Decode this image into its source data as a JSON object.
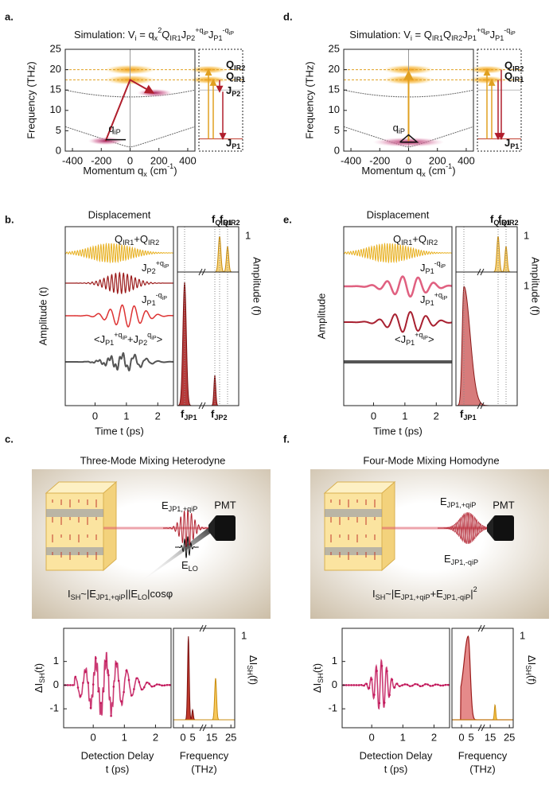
{
  "figure": {
    "panels": [
      {
        "label": "a.",
        "title": [
          {
            "base": "Simulation: V",
            "sub": "i"
          },
          {
            "base": " = q",
            "sub": "x",
            "sup": "2"
          },
          {
            "base": "Q",
            "sub": "IR1"
          },
          {
            "base": "J",
            "sub": "P2",
            "sup": "+q",
            "supsub": "iP"
          },
          {
            "base": "J",
            "sub": "P1",
            "sup": "-q",
            "supsub": "iP"
          }
        ],
        "y_label": "Frequency (THz)",
        "x_label": [
          {
            "base": "Momentum q",
            "sub": "x"
          },
          {
            "base": " (cm",
            "sup": "-1"
          },
          {
            "base": ")"
          }
        ],
        "xlim": [
          -450,
          450
        ],
        "xticks": [
          -400,
          -200,
          0,
          200,
          400
        ],
        "ylim": [
          0,
          25
        ],
        "yticks": [
          0,
          5,
          10,
          15,
          20,
          25
        ],
        "q_label": [
          {
            "base": "q",
            "sub": "iP"
          }
        ],
        "levels": [
          [
            {
              "base": "Q",
              "sub": "IR2"
            }
          ],
          [
            {
              "base": "Q",
              "sub": "IR1"
            }
          ],
          [
            {
              "base": "J",
              "sub": "P2"
            }
          ],
          [
            {
              "base": "J",
              "sub": "P1"
            }
          ]
        ]
      },
      {
        "label": "b.",
        "title": "Displacement",
        "y_label": "Amplitude (t)",
        "y2_label": "Amplitude (f)",
        "x_label": "Time t (ps)",
        "xlim": [
          -0.95,
          2.5
        ],
        "xticks": [
          0,
          1,
          2
        ],
        "trace_labels": [
          [
            {
              "base": "Q",
              "sub": "IR1"
            },
            {
              "base": "+Q",
              "sub": "IR2"
            }
          ],
          [
            {
              "base": "J",
              "sub": "P2",
              "sup": "+q",
              "supsub": "iP"
            }
          ],
          [
            {
              "base": "J",
              "sub": "P1",
              "sup": "-q",
              "supsub": "iP"
            }
          ],
          [
            {
              "base": "<J",
              "sub": "P1",
              "sup": "+q",
              "supsub": "iP"
            },
            {
              "base": "+J",
              "sub": "P2",
              "sup": "q",
              "supsub": "iP"
            },
            {
              "base": ">"
            }
          ]
        ],
        "peak_labels_top": [
          [
            {
              "base": "f",
              "sub": "QIR1"
            }
          ],
          [
            {
              "base": "f",
              "sub": "QIR2"
            }
          ]
        ],
        "peak_labels_bottom": [
          [
            {
              "base": "f",
              "sub": "JP1"
            }
          ],
          [
            {
              "base": "f",
              "sub": "JP2"
            }
          ]
        ],
        "norm_ticks": [
          1
        ]
      },
      {
        "label": "c.",
        "title": "Three-Mode Mixing Heterodyne",
        "beam_labels": [
          [
            {
              "base": "E",
              "sub": "JP1,+qiP"
            }
          ],
          [
            {
              "base": "E",
              "sub": "LO"
            }
          ]
        ],
        "detector": "PMT",
        "formula": [
          {
            "base": "I",
            "sub": "SH"
          },
          {
            "base": "~|E",
            "sub": "JP1,+qiP"
          },
          {
            "base": "||E",
            "sub": "LO"
          },
          {
            "base": "|cosφ"
          }
        ],
        "y_label": [
          {
            "base": "ΔI",
            "sub": "SH"
          },
          {
            "base": "(t)"
          }
        ],
        "y2_label": [
          {
            "base": "ΔI",
            "sub": "SH"
          },
          {
            "base": "(f)"
          }
        ],
        "x_label": [
          "Detection Delay",
          "t (ps)"
        ],
        "f_label": [
          "Frequency",
          "(THz)"
        ],
        "xlim": [
          -0.95,
          2.5
        ],
        "xticks": [
          0,
          1,
          2
        ],
        "ylim": [
          -1.8,
          2.4
        ],
        "yticks": [
          -1,
          0,
          1
        ],
        "flim": [
          -5,
          27
        ],
        "fticks": [
          0,
          5,
          15,
          25
        ],
        "norm_ticks": [
          1
        ]
      },
      {
        "label": "d.",
        "title": [
          {
            "base": "Simulation: V",
            "sub": "i"
          },
          {
            "base": " = Q",
            "sub": "IR1"
          },
          {
            "base": "Q",
            "sub": "IR2"
          },
          {
            "base": "J",
            "sub": "P1",
            "sup": "+q",
            "supsub": "iP"
          },
          {
            "base": "J",
            "sub": "P1",
            "sup": "-q",
            "supsub": "iP"
          }
        ],
        "y_label": "Frequency (THz)",
        "x_label": [
          {
            "base": "Momentum q",
            "sub": "x"
          },
          {
            "base": " (cm",
            "sup": "-1"
          },
          {
            "base": ")"
          }
        ],
        "xlim": [
          -450,
          450
        ],
        "xticks": [
          -400,
          -200,
          0,
          200,
          400
        ],
        "ylim": [
          0,
          25
        ],
        "yticks": [
          0,
          5,
          10,
          15,
          20,
          25
        ],
        "q_label": [
          {
            "base": "q",
            "sub": "iP"
          }
        ],
        "levels": [
          [
            {
              "base": "Q",
              "sub": "IR2"
            }
          ],
          [
            {
              "base": "Q",
              "sub": "IR1"
            }
          ],
          [
            {
              "base": "J",
              "sub": "P1"
            }
          ]
        ]
      },
      {
        "label": "e.",
        "title": "Displacement",
        "y_label": "Amplitude",
        "y2_label": "Amplitude (f)",
        "x_label": "Time t (ps)",
        "xlim": [
          -0.95,
          2.5
        ],
        "xticks": [
          0,
          1,
          2
        ],
        "trace_labels": [
          [
            {
              "base": "Q",
              "sub": "IR1"
            },
            {
              "base": "+Q",
              "sub": "IR2"
            }
          ],
          [
            {
              "base": "J",
              "sub": "P1",
              "sup": "-q",
              "supsub": "iP"
            }
          ],
          [
            {
              "base": "J",
              "sub": "P1",
              "sup": "+q",
              "supsub": "iP"
            }
          ],
          [
            {
              "base": "<J",
              "sub": "P1",
              "sup": "+q",
              "supsub": "iP"
            },
            {
              "base": ">"
            }
          ]
        ],
        "peak_labels_top": [
          [
            {
              "base": "f",
              "sub": "QIR1"
            }
          ],
          [
            {
              "base": "f",
              "sub": "QIR2"
            }
          ]
        ],
        "peak_labels_bottom": [
          [
            {
              "base": "f",
              "sub": "JP1"
            }
          ]
        ],
        "norm_ticks": [
          1,
          1
        ]
      },
      {
        "label": "f.",
        "title": "Four-Mode Mixing Homodyne",
        "beam_labels": [
          [
            {
              "base": "E",
              "sub": "JP1,+qiP"
            }
          ],
          [
            {
              "base": "E",
              "sub": "JP1,-qiP"
            }
          ]
        ],
        "detector": "PMT",
        "formula": [
          {
            "base": "I",
            "sub": "SH"
          },
          {
            "base": "~|E",
            "sub": "JP1,+qiP"
          },
          {
            "base": "+E",
            "sub": "JP1,-qiP"
          },
          {
            "base": "|",
            "sup": "2"
          }
        ],
        "y_label": [
          {
            "base": "ΔI",
            "sub": "SH"
          },
          {
            "base": "(t)"
          }
        ],
        "y2_label": [
          {
            "base": "ΔI",
            "sub": "SH"
          },
          {
            "base": "(f)"
          }
        ],
        "x_label": [
          "Detection Delay",
          "t (ps)"
        ],
        "f_label": [
          "Frequency",
          "(THz)"
        ],
        "xlim": [
          -0.95,
          2.5
        ],
        "xticks": [
          0,
          1,
          2
        ],
        "ylim": [
          -1.8,
          2.4
        ],
        "yticks": [
          -1,
          0,
          1
        ],
        "flim": [
          -5,
          27
        ],
        "fticks": [
          0,
          5,
          15,
          25
        ],
        "norm_ticks": [
          1
        ]
      }
    ]
  }
}
